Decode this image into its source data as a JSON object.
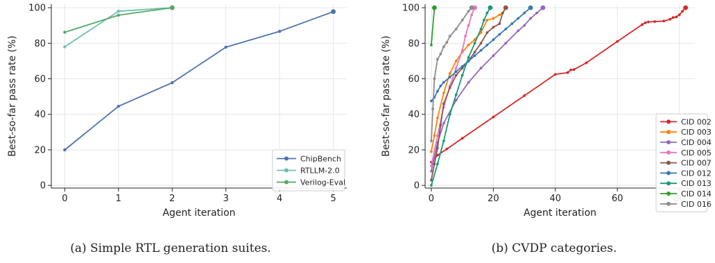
{
  "chart_data": [
    {
      "type": "line",
      "caption": "(a) Simple RTL generation suites.",
      "xlabel": "Agent iteration",
      "ylabel": "Best-so-far pass rate (%)",
      "xlim": [
        -0.25,
        5.25
      ],
      "ylim": [
        -1.5,
        102
      ],
      "xticks": [
        0,
        1,
        2,
        3,
        4,
        5
      ],
      "yticks": [
        0,
        20,
        40,
        60,
        80,
        100
      ],
      "grid": true,
      "legend_position": "bottom-right",
      "series": [
        {
          "name": "ChipBench",
          "color": "#4c72b0",
          "x": [
            0,
            1,
            2,
            3,
            4,
            5
          ],
          "y": [
            20,
            44.5,
            57.8,
            77.8,
            86.7,
            97.8
          ]
        },
        {
          "name": "RTLLM-2.0",
          "color": "#6fbfb0",
          "x": [
            0,
            1,
            2
          ],
          "y": [
            78,
            98,
            100
          ]
        },
        {
          "name": "Verilog-Eval",
          "color": "#55a868",
          "x": [
            0,
            1,
            2
          ],
          "y": [
            86.2,
            95.8,
            100
          ]
        }
      ]
    },
    {
      "type": "line",
      "caption": "(b) CVDP categories.",
      "xlabel": "Agent iteration",
      "ylabel": "Best-so-far pass rate (%)",
      "xlim": [
        -2,
        85
      ],
      "ylim": [
        -1.5,
        102
      ],
      "xticks": [
        0,
        20,
        40,
        60,
        80
      ],
      "yticks": [
        0,
        20,
        40,
        60,
        80,
        100
      ],
      "grid": true,
      "legend_position": "right",
      "series": [
        {
          "name": "CID 002",
          "color": "#d62728",
          "x": [
            0,
            2,
            5,
            10,
            20,
            30,
            40,
            44,
            45,
            46,
            50,
            60,
            68,
            69,
            70,
            72,
            75,
            77,
            78,
            79,
            80,
            81,
            82
          ],
          "y": [
            13,
            17,
            20.5,
            26.5,
            38.5,
            50.5,
            62.5,
            63.5,
            65,
            65.2,
            69,
            81,
            90.5,
            91.5,
            92,
            92.2,
            92.5,
            93.5,
            94.5,
            94.8,
            96,
            98,
            100
          ]
        },
        {
          "name": "CID 003",
          "color": "#ff7f0e",
          "x": [
            0,
            1,
            2,
            4,
            6,
            8,
            10,
            12,
            14,
            16,
            18,
            20,
            22,
            23,
            24
          ],
          "y": [
            19,
            28,
            38,
            52,
            63,
            70,
            75,
            79,
            82,
            86,
            93,
            94,
            96,
            97,
            100
          ]
        },
        {
          "name": "CID 004",
          "color": "#9467bd",
          "x": [
            0,
            2,
            4,
            8,
            12,
            16,
            20,
            24,
            28,
            30,
            32,
            34,
            36
          ],
          "y": [
            8,
            24,
            35,
            48,
            58,
            66,
            73,
            80,
            87,
            90,
            94,
            97,
            100
          ]
        },
        {
          "name": "CID 005",
          "color": "#e377c2",
          "x": [
            0,
            2,
            4,
            6,
            8,
            10,
            11,
            12,
            13,
            14
          ],
          "y": [
            11,
            28,
            44,
            56,
            66,
            76,
            84,
            90,
            96,
            100
          ]
        },
        {
          "name": "CID 007",
          "color": "#8c564b",
          "x": [
            0,
            1,
            2,
            3,
            4,
            6,
            8,
            10,
            12,
            14,
            16,
            18,
            20,
            22,
            23,
            24
          ],
          "y": [
            3,
            12,
            21,
            34,
            46,
            55,
            62,
            66,
            70,
            75,
            80,
            86,
            89,
            91,
            97,
            100
          ]
        },
        {
          "name": "CID 012",
          "color": "#3778b7",
          "x": [
            0,
            1,
            2,
            3,
            4,
            6,
            8,
            10,
            12,
            14,
            16,
            18,
            20,
            22,
            24,
            26,
            28,
            30,
            32
          ],
          "y": [
            47.5,
            49.5,
            53,
            56,
            58,
            61,
            64,
            67,
            70,
            73,
            76,
            79,
            82,
            85,
            88,
            91,
            94,
            97,
            100
          ]
        },
        {
          "name": "CID 013",
          "color": "#17977a",
          "x": [
            0,
            2,
            4,
            6,
            8,
            10,
            12,
            14,
            16,
            17,
            18,
            19
          ],
          "y": [
            0,
            12,
            25,
            40,
            51,
            62,
            72,
            80,
            88,
            93,
            97,
            100
          ]
        },
        {
          "name": "CID 014",
          "color": "#2ca02c",
          "x": [
            0,
            1
          ],
          "y": [
            79,
            100
          ]
        },
        {
          "name": "CID 016",
          "color": "#8c8c8c",
          "x": [
            0,
            0.5,
            1,
            2,
            3,
            4,
            5,
            6,
            8,
            10,
            12,
            13
          ],
          "y": [
            25,
            43,
            60,
            71,
            74,
            78,
            80.5,
            84,
            88,
            93,
            98,
            100
          ]
        }
      ]
    }
  ]
}
